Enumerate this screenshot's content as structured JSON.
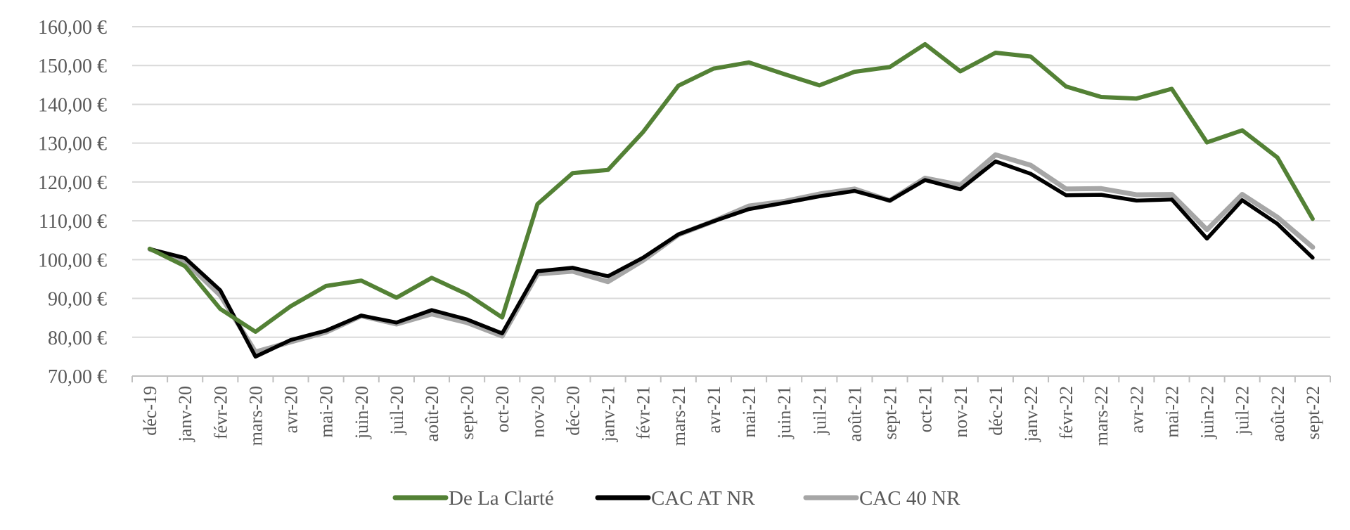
{
  "chart_data": {
    "type": "line",
    "title": "",
    "xlabel": "",
    "ylabel": "",
    "ylim": [
      70,
      160
    ],
    "y_ticks": [
      70,
      80,
      90,
      100,
      110,
      120,
      130,
      140,
      150,
      160
    ],
    "y_tick_labels": [
      "70,00 €",
      "80,00 €",
      "90,00 €",
      "100,00 €",
      "110,00 €",
      "120,00 €",
      "130,00 €",
      "140,00 €",
      "150,00 €",
      "160,00 €"
    ],
    "grid": true,
    "legend_position": "bottom",
    "categories": [
      "déc-19",
      "janv-20",
      "févr-20",
      "mars-20",
      "avr-20",
      "mai-20",
      "juin-20",
      "juil-20",
      "août-20",
      "sept-20",
      "oct-20",
      "nov-20",
      "déc-20",
      "janv-21",
      "févr-21",
      "mars-21",
      "avr-21",
      "mai-21",
      "juin-21",
      "juil-21",
      "août-21",
      "sept-21",
      "oct-21",
      "nov-21",
      "déc-21",
      "janv-22",
      "févr-22",
      "mars-22",
      "avr-22",
      "mai-22",
      "juin-22",
      "juil-22",
      "août-22",
      "sept-22"
    ],
    "series": [
      {
        "name": "CAC 40 NR",
        "color": "#a6a6a6",
        "values": [
          102.7,
          99.5,
          90.8,
          76.2,
          78.8,
          81.3,
          85.5,
          83.4,
          86.0,
          83.8,
          80.3,
          96.3,
          97.0,
          94.3,
          99.8,
          106.4,
          109.9,
          113.8,
          115.0,
          116.9,
          118.2,
          115.2,
          121.0,
          119.2,
          127.0,
          124.3,
          118.2,
          118.3,
          116.7,
          116.8,
          107.7,
          116.8,
          110.9,
          103.2
        ]
      },
      {
        "name": "CAC AT NR",
        "color": "#000000",
        "values": [
          102.7,
          100.4,
          92.1,
          75.0,
          79.3,
          81.7,
          85.6,
          83.8,
          87.0,
          84.6,
          81.0,
          97.0,
          97.9,
          95.7,
          100.5,
          106.5,
          109.9,
          113.0,
          114.6,
          116.3,
          117.7,
          115.2,
          120.5,
          118.1,
          125.3,
          122.1,
          116.6,
          116.7,
          115.2,
          115.5,
          105.4,
          115.3,
          109.2,
          100.5
        ]
      },
      {
        "name": "De La Clarté",
        "color": "#538135",
        "values": [
          102.8,
          98.3,
          87.3,
          81.4,
          88.0,
          93.2,
          94.6,
          90.2,
          95.3,
          91.1,
          85.1,
          114.3,
          122.3,
          123.1,
          132.9,
          144.8,
          149.2,
          150.8,
          147.8,
          144.9,
          148.4,
          149.6,
          155.5,
          148.5,
          153.3,
          152.3,
          144.6,
          141.9,
          141.5,
          144.0,
          130.2,
          133.3,
          126.3,
          110.5
        ]
      }
    ],
    "legend": [
      {
        "name": "De La Clarté",
        "color": "#538135"
      },
      {
        "name": "CAC AT NR",
        "color": "#000000"
      },
      {
        "name": "CAC 40 NR",
        "color": "#a6a6a6"
      }
    ]
  }
}
